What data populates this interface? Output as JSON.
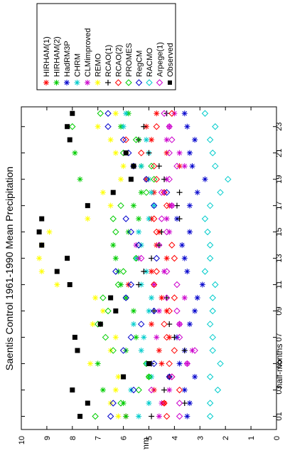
{
  "chart_data": {
    "type": "scatter",
    "title": "Saentis Control 1961-1990 Mean Precipitation",
    "xlabel": "half-months",
    "ylabel": "mm",
    "x_ticks": [
      "01",
      "03",
      "05",
      "07",
      "09",
      "11",
      "13",
      "15",
      "17",
      "19",
      "21",
      "23"
    ],
    "y_ticks": [
      "0",
      "1",
      "2",
      "3",
      "4",
      "5",
      "6",
      "7",
      "8",
      "9",
      "10"
    ],
    "xlim": [
      0,
      24.5
    ],
    "ylim": [
      0,
      10
    ],
    "grid": false,
    "orientation": "rotated-90",
    "legend_position": "top-right",
    "x": [
      1,
      2,
      3,
      4,
      5,
      6,
      7,
      8,
      9,
      10,
      11,
      12,
      13,
      14,
      15,
      16,
      17,
      18,
      19,
      20,
      21,
      22,
      23,
      24
    ],
    "series": [
      {
        "name": "HIRHAM(1)",
        "color": "#ff0000",
        "marker": "asterisk",
        "values": [
          5.9,
          4.4,
          4.8,
          4.2,
          4.5,
          4.6,
          4.2,
          4.9,
          4.3,
          4.5,
          5.8,
          4.9,
          4.3,
          4.7,
          4.6,
          4.9,
          4.2,
          4.8,
          5.1,
          3.8,
          4.3,
          4.9,
          5.1,
          4.7
        ]
      },
      {
        "name": "HIRHAM(2)",
        "color": "#00cc00",
        "marker": "asterisk",
        "values": [
          5.9,
          6.0,
          6.8,
          5.0,
          7.0,
          5.9,
          5.5,
          6.9,
          5.6,
          5.9,
          6.1,
          6.2,
          6.3,
          6.4,
          5.8,
          5.4,
          5.6,
          5.3,
          7.7,
          5.3,
          7.9,
          5.4,
          6.1,
          5.8
        ]
      },
      {
        "name": "HadRM3P",
        "color": "#0000cc",
        "marker": "asterisk",
        "values": [
          3.5,
          3.4,
          3.6,
          3.2,
          3.8,
          3.6,
          3.9,
          3.4,
          3.2,
          3.1,
          2.9,
          3.5,
          3.6,
          3.7,
          3.4,
          3.9,
          3.4,
          3.1,
          2.8,
          3.3,
          3.4,
          3.2,
          3.5,
          3.6
        ]
      },
      {
        "name": "CHRM",
        "color": "#00cccc",
        "marker": "asterisk",
        "values": [
          5.4,
          5.0,
          5.7,
          4.9,
          5.1,
          5.3,
          5.2,
          5.6,
          5.0,
          4.9,
          5.3,
          5.1,
          5.5,
          5.3,
          5.4,
          5.0,
          4.8,
          4.9,
          5.0,
          5.3,
          5.0,
          5.1,
          6.0,
          5.9
        ]
      },
      {
        "name": "CLMimproved",
        "color": "#cc00cc",
        "marker": "asterisk",
        "values": [
          4.6,
          4.5,
          4.2,
          4.2,
          3.5,
          3.3,
          4.7,
          3.8,
          4.6,
          3.6,
          4.8,
          4.4,
          5.4,
          5.5,
          4.2,
          4.3,
          4.1,
          4.4,
          4.3,
          3.6,
          3.8,
          4.3,
          4.2,
          4.0
        ]
      },
      {
        "name": "REMO",
        "color": "#ffff00",
        "marker": "asterisk",
        "values": [
          6.2,
          6.5,
          6.3,
          6.2,
          7.3,
          6.5,
          6.3,
          7.2,
          6.8,
          7.1,
          8.6,
          9.2,
          9.3,
          9.2,
          8.9,
          7.4,
          6.5,
          6.8,
          6.1,
          6.0,
          6.3,
          6.5,
          7.0,
          6.3
        ]
      },
      {
        "name": "RCAO(1)",
        "color": "#000000",
        "marker": "plus",
        "values": [
          4.9,
          3.6,
          4.4,
          4.2,
          4.9,
          3.6,
          4.0,
          4.2,
          4.8,
          4.3,
          5.4,
          5.2,
          4.9,
          4.6,
          4.5,
          3.8,
          3.9,
          3.8,
          4.4,
          4.6,
          5.0,
          5.4,
          5.2,
          4.3
        ]
      },
      {
        "name": "RCAO(2)",
        "color": "#ff0000",
        "marker": "diamond",
        "values": [
          4.3,
          4.4,
          3.8,
          4.1,
          4.2,
          4.0,
          4.3,
          4.4,
          4.2,
          4.0,
          4.8,
          4.7,
          4.0,
          4.1,
          4.7,
          4.8,
          4.3,
          4.4,
          4.7,
          4.8,
          5.3,
          5.9,
          4.7,
          4.1
        ]
      },
      {
        "name": "PROMES",
        "color": "#00cc00",
        "marker": "diamond",
        "values": [
          7.1,
          6.1,
          5.4,
          5.0,
          5.1,
          6.4,
          6.7,
          7.0,
          6.6,
          6.8,
          6.2,
          6.0,
          5.5,
          5.4,
          6.3,
          6.4,
          6.1,
          5.1,
          4.8,
          4.9,
          6.0,
          5.5,
          8.0,
          6.9
        ]
      },
      {
        "name": "RegCM",
        "color": "#0000cc",
        "marker": "diamond",
        "values": [
          6.5,
          6.4,
          5.6,
          4.2,
          4.8,
          6.0,
          5.7,
          5.3,
          4.8,
          5.9,
          5.7,
          6.3,
          4.7,
          5.4,
          5.7,
          5.9,
          4.8,
          4.3,
          5.1,
          5.6,
          5.8,
          6.0,
          6.6,
          6.6
        ]
      },
      {
        "name": "RACMO",
        "color": "#00cccc",
        "marker": "diamond",
        "values": [
          2.6,
          2.6,
          2.3,
          2.6,
          2.2,
          2.5,
          2.5,
          2.6,
          2.5,
          2.5,
          2.4,
          2.8,
          2.6,
          2.6,
          2.7,
          2.8,
          2.6,
          2.2,
          1.9,
          2.4,
          2.5,
          2.6,
          2.4,
          2.8
        ]
      },
      {
        "name": "Arpege(1)",
        "color": "#cc00cc",
        "marker": "diamond",
        "values": [
          3.8,
          3.8,
          4.9,
          4.1,
          3.5,
          3.2,
          3.8,
          3.8,
          3.9,
          4.3,
          3.9,
          4.3,
          5.3,
          4.6,
          4.3,
          4.5,
          4.1,
          4.5,
          4.2,
          3.9,
          4.2,
          4.1,
          4.2,
          4.4
        ]
      },
      {
        "name": "Observed",
        "color": "#000000",
        "marker": "square",
        "values": [
          7.7,
          7.4,
          8.0,
          6.0,
          5.0,
          7.8,
          7.9,
          6.9,
          6.3,
          6.5,
          8.1,
          8.6,
          8.2,
          9.2,
          9.3,
          9.2,
          7.4,
          6.4,
          5.7,
          5.6,
          5.9,
          8.1,
          8.2,
          8.0
        ]
      }
    ]
  }
}
